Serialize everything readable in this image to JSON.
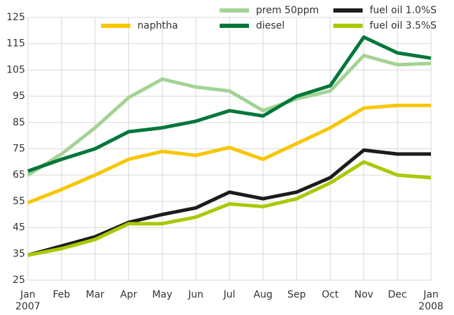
{
  "chart_data": {
    "type": "line",
    "categories": [
      "Jan",
      "Feb",
      "Mar",
      "Apr",
      "May",
      "Jun",
      "Jul",
      "Aug",
      "Sep",
      "Oct",
      "Nov",
      "Dec",
      "Jan"
    ],
    "start_year": "2007",
    "end_year": "2008",
    "series": [
      {
        "name": "naphtha",
        "color": "#f7c600",
        "values": [
          54.5,
          59.5,
          65,
          71,
          74,
          72.5,
          75.5,
          71,
          77,
          83,
          90.5,
          91.5,
          91.5
        ]
      },
      {
        "name": "prem 50ppm",
        "color": "#a3d394",
        "values": [
          65,
          73,
          83,
          94.5,
          101.5,
          98.5,
          97,
          89.5,
          94,
          97,
          110.5,
          107,
          107.5
        ]
      },
      {
        "name": "diesel",
        "color": "#00773a",
        "values": [
          66.5,
          71,
          75,
          81.5,
          83,
          85.5,
          89.5,
          87.5,
          95,
          99,
          117.5,
          111.5,
          109.5
        ]
      },
      {
        "name": "fuel oil 1.0%S",
        "color": "#1c1c1c",
        "values": [
          34.5,
          38,
          41.5,
          47,
          50,
          52.5,
          58.5,
          56,
          58.5,
          64,
          74.5,
          73,
          73
        ]
      },
      {
        "name": "fuel oil 3.5%S",
        "color": "#a9c800",
        "values": [
          34.5,
          37,
          40.5,
          46.5,
          46.5,
          49,
          54,
          53,
          56,
          62,
          70,
          65,
          64
        ]
      }
    ],
    "ylim": [
      25,
      125
    ],
    "yticks": [
      25,
      35,
      45,
      55,
      65,
      75,
      85,
      95,
      105,
      115,
      125
    ],
    "grid": true
  }
}
